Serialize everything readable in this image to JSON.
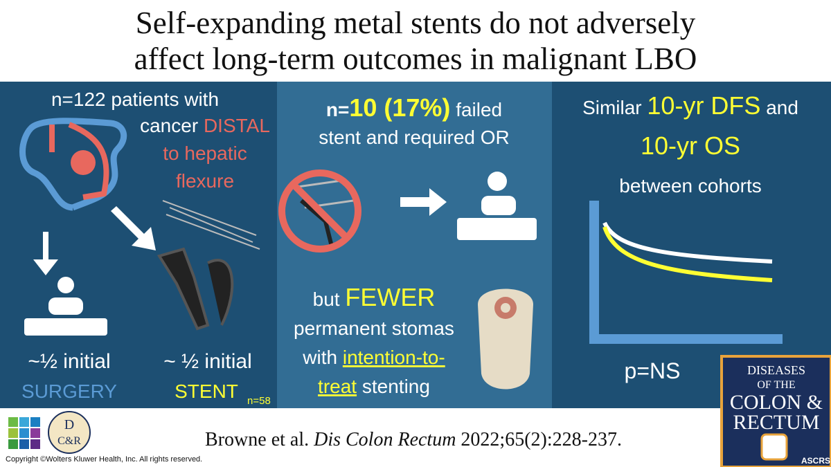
{
  "header": {
    "title_lines": [
      "Self-expanding metal stents do not adversely",
      "affect long-term outcomes in malignant LBO"
    ]
  },
  "left_panel": {
    "line1": "n=122 patients with",
    "line2": [
      "cancer",
      "DISTAL"
    ],
    "line3": "to hepatic",
    "line4": "flexure",
    "surgery": {
      "share": "~½ initial",
      "label": "SURGERY"
    },
    "stent": {
      "share": "~ ½ initial",
      "label": "STENT",
      "n": "n=58"
    }
  },
  "middle_panel": {
    "line1": [
      "n=",
      "10 (17%)",
      "failed"
    ],
    "line2": "stent and required OR",
    "line3": [
      "but",
      "FEWER"
    ],
    "line4": "permanent stomas",
    "line5": [
      "with",
      "intention-to-"
    ],
    "line6": [
      "treat",
      "stenting"
    ]
  },
  "right_panel": {
    "line1": [
      "Similar",
      "10-yr DFS",
      "and"
    ],
    "line2": "10-yr OS",
    "line3": "between cohorts",
    "p_value": "p=NS"
  },
  "footer": {
    "citation": [
      "Browne et al.",
      "Dis Colon Rectum",
      "2022;65(2):228-237."
    ],
    "copyright": "Copyright ©Wolters Kluwer Health, Inc. All rights reserved.",
    "society_logo": [
      "D",
      "C&R"
    ],
    "journal_logo": [
      "DISEASES",
      "OF THE",
      "COLON &",
      "RECTUM",
      "ASCRS"
    ]
  }
}
